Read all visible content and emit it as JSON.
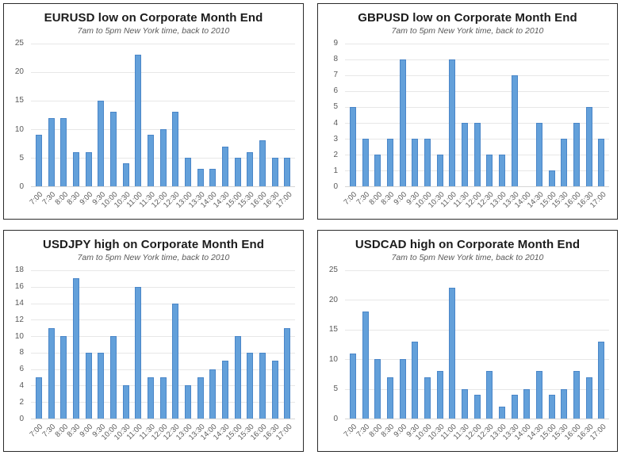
{
  "style": {
    "bar_fill": "#63a0da",
    "bar_border": "#4a86c8",
    "gridline_color": "#e7e7e7",
    "axis_line_color": "#d6d6d6",
    "tick_label_color": "#595959",
    "title_color": "#1c1c1c",
    "subtitle_color": "#595959",
    "panel_border_color": "#2b2b2b"
  },
  "chart_data": [
    {
      "type": "bar",
      "title": "EURUSD low on Corporate Month End",
      "subtitle": "7am to 5pm New York time, back to 2010",
      "categories": [
        "7:00",
        "7:30",
        "8:00",
        "8:30",
        "9:00",
        "9:30",
        "10:00",
        "10:30",
        "11:00",
        "11:30",
        "12:00",
        "12:30",
        "13:00",
        "13:30",
        "14:00",
        "14:30",
        "15:00",
        "15:30",
        "16:00",
        "16:30",
        "17:00"
      ],
      "values": [
        9,
        12,
        12,
        6,
        6,
        15,
        13,
        4,
        23,
        9,
        10,
        13,
        5,
        3,
        3,
        7,
        5,
        6,
        8,
        5,
        5
      ],
      "xlabel": "",
      "ylabel": "",
      "ylim": [
        0,
        25
      ],
      "ytick_step": 5,
      "grid": true,
      "legend": "none"
    },
    {
      "type": "bar",
      "title": "GBPUSD low on Corporate Month End",
      "subtitle": "7am to 5pm New York time, back to 2010",
      "categories": [
        "7:00",
        "7:30",
        "8:00",
        "8:30",
        "9:00",
        "9:30",
        "10:00",
        "10:30",
        "11:00",
        "11:30",
        "12:00",
        "12:30",
        "13:00",
        "13:30",
        "14:00",
        "14:30",
        "15:00",
        "15:30",
        "16:00",
        "16:30",
        "17:00"
      ],
      "values": [
        5,
        3,
        2,
        3,
        8,
        3,
        3,
        2,
        8,
        4,
        4,
        2,
        2,
        7,
        0,
        4,
        1,
        3,
        4,
        5,
        3
      ],
      "xlabel": "",
      "ylabel": "",
      "ylim": [
        0,
        9
      ],
      "ytick_step": 1,
      "grid": true,
      "legend": "none"
    },
    {
      "type": "bar",
      "title": "USDJPY high on Corporate Month End",
      "subtitle": "7am to 5pm New York time, back to 2010",
      "categories": [
        "7:00",
        "7:30",
        "8:00",
        "8:30",
        "9:00",
        "9:30",
        "10:00",
        "10:30",
        "11:00",
        "11:30",
        "12:00",
        "12:30",
        "13:00",
        "13:30",
        "14:00",
        "14:30",
        "15:00",
        "15:30",
        "16:00",
        "16:30",
        "17:00"
      ],
      "values": [
        5,
        11,
        10,
        17,
        8,
        8,
        10,
        4,
        16,
        5,
        5,
        14,
        4,
        5,
        6,
        7,
        10,
        8,
        8,
        7,
        11
      ],
      "xlabel": "",
      "ylabel": "",
      "ylim": [
        0,
        18
      ],
      "ytick_step": 2,
      "grid": true,
      "legend": "none"
    },
    {
      "type": "bar",
      "title": "USDCAD high on Corporate Month End",
      "subtitle": "7am to 5pm New York time, back to 2010",
      "categories": [
        "7:00",
        "7:30",
        "8:00",
        "8:30",
        "9:00",
        "9:30",
        "10:00",
        "10:30",
        "11:00",
        "11:30",
        "12:00",
        "12:30",
        "13:00",
        "13:30",
        "14:00",
        "14:30",
        "15:00",
        "15:30",
        "16:00",
        "16:30",
        "17:00"
      ],
      "values": [
        11,
        18,
        10,
        7,
        10,
        13,
        7,
        8,
        22,
        5,
        4,
        8,
        2,
        4,
        5,
        8,
        4,
        5,
        8,
        7,
        13
      ],
      "xlabel": "",
      "ylabel": "",
      "ylim": [
        0,
        25
      ],
      "ytick_step": 5,
      "grid": true,
      "legend": "none"
    }
  ]
}
